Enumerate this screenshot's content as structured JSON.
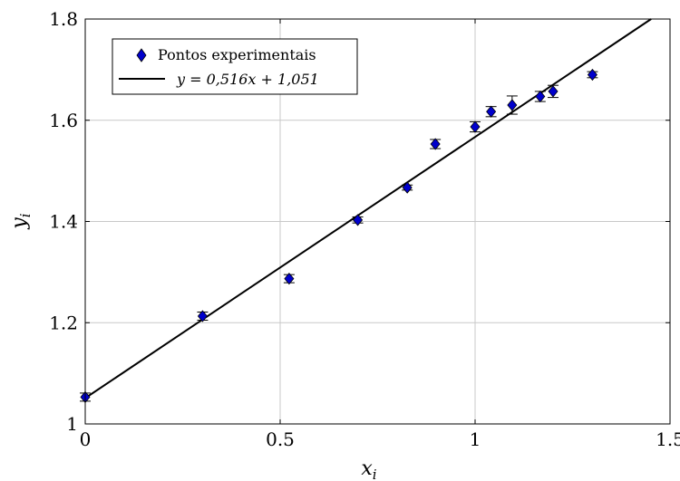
{
  "chart_data": {
    "type": "scatter",
    "xlabel": "x_i",
    "ylabel": "y_i",
    "xlim": [
      0,
      1.5
    ],
    "ylim": [
      1,
      1.8
    ],
    "xticks": [
      "0",
      "0.5",
      "1",
      "1.5"
    ],
    "yticks": [
      "1",
      "1.2",
      "1.4",
      "1.6",
      "1.8"
    ],
    "grid": true,
    "legend_position": "top-left",
    "series": [
      {
        "name": "Pontos experimentais",
        "kind": "points",
        "marker": "diamond",
        "color": "#0000cc",
        "x": [
          0.0,
          0.301,
          0.523,
          0.699,
          0.826,
          0.898,
          1.0,
          1.041,
          1.095,
          1.167,
          1.2,
          1.301
        ],
        "y": [
          1.053,
          1.213,
          1.287,
          1.403,
          1.467,
          1.553,
          1.587,
          1.617,
          1.63,
          1.647,
          1.657,
          1.69
        ],
        "err": [
          0.008,
          0.008,
          0.008,
          0.006,
          0.005,
          0.009,
          0.01,
          0.01,
          0.018,
          0.01,
          0.012,
          0.006
        ]
      },
      {
        "name": "y = 0,516x + 1,051",
        "kind": "line",
        "color": "#000000",
        "slope": 0.516,
        "intercept": 1.051
      }
    ]
  },
  "axes": {
    "xlabel_main": "x",
    "xlabel_sub": "i",
    "ylabel_main": "y",
    "ylabel_sub": "i"
  },
  "legend": {
    "points_label": "Pontos experimentais",
    "line_label": "y = 0,516x + 1,051"
  }
}
